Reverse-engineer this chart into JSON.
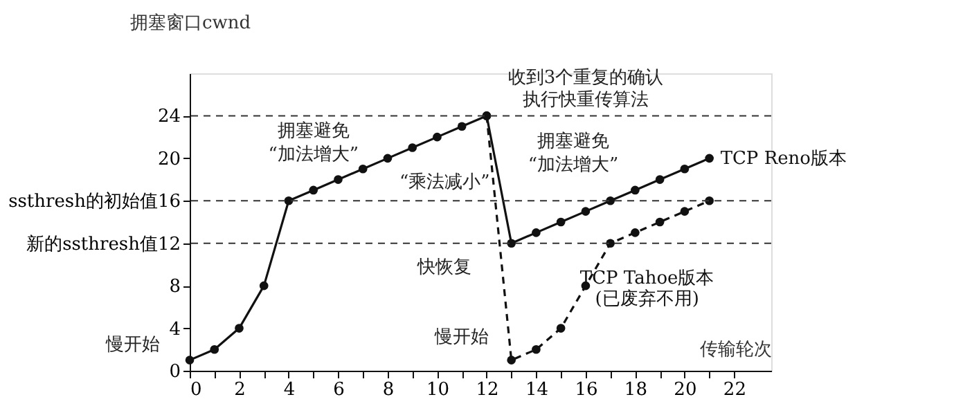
{
  "chart_data": {
    "type": "line",
    "xlabel": "传输轮次",
    "ylabel": "拥塞窗口cwnd",
    "x": [
      0,
      1,
      2,
      3,
      4,
      5,
      6,
      7,
      8,
      9,
      10,
      11,
      12,
      13,
      14,
      15,
      16,
      17,
      18,
      19,
      20,
      21
    ],
    "series": [
      {
        "name": "TCP Reno版本",
        "color": "#111111",
        "line_style": "solid",
        "values": [
          1,
          2,
          4,
          8,
          16,
          17,
          18,
          19,
          20,
          21,
          22,
          23,
          24,
          12,
          13,
          14,
          15,
          16,
          17,
          18,
          19,
          20
        ]
      },
      {
        "name": "TCP Tahoe版本\n(已废弃不用)",
        "color": "#111111",
        "line_style": "dashed",
        "x": [
          12,
          13,
          14,
          15,
          16,
          17,
          18,
          19,
          20,
          21
        ],
        "values": [
          24,
          1,
          2,
          4,
          8,
          12,
          13,
          14,
          15,
          16
        ]
      }
    ],
    "xlim": [
      0,
      23.5
    ],
    "ylim": [
      0,
      28
    ],
    "xticks": [
      0,
      {
        "value": 1,
        "label": null
      },
      2,
      {
        "value": 3,
        "label": null
      },
      4,
      {
        "value": 5,
        "label": null
      },
      6,
      {
        "value": 7,
        "label": null
      },
      8,
      {
        "value": 9,
        "label": null
      },
      10,
      {
        "value": 11,
        "label": null
      },
      12,
      {
        "value": 13,
        "label": null
      },
      14,
      {
        "value": 15,
        "label": null
      },
      16,
      {
        "value": 17,
        "label": null
      },
      18,
      {
        "value": 19,
        "label": null
      },
      20,
      {
        "value": 21,
        "label": null
      },
      22
    ],
    "yticks": [
      0,
      4,
      8,
      {
        "value": 12,
        "label": "新的ssthresh值12"
      },
      {
        "value": 16,
        "label": "ssthresh的初始值16"
      },
      20,
      24
    ],
    "ref_lines": [
      {
        "axis": "y",
        "value": 24,
        "line_style": "dashed"
      },
      {
        "axis": "y",
        "value": 16,
        "line_style": "dashed"
      },
      {
        "axis": "y",
        "value": 12,
        "line_style": "dashed"
      }
    ],
    "annotations": [
      "慢开始",
      "拥塞避免",
      "“加法增大”",
      "“乘法减小”",
      "快恢复",
      "收到3个重复的确认",
      "执行快重传算法",
      "拥塞避免",
      "“加法增大”",
      "慢开始"
    ],
    "grid": false,
    "marker": "circle"
  }
}
